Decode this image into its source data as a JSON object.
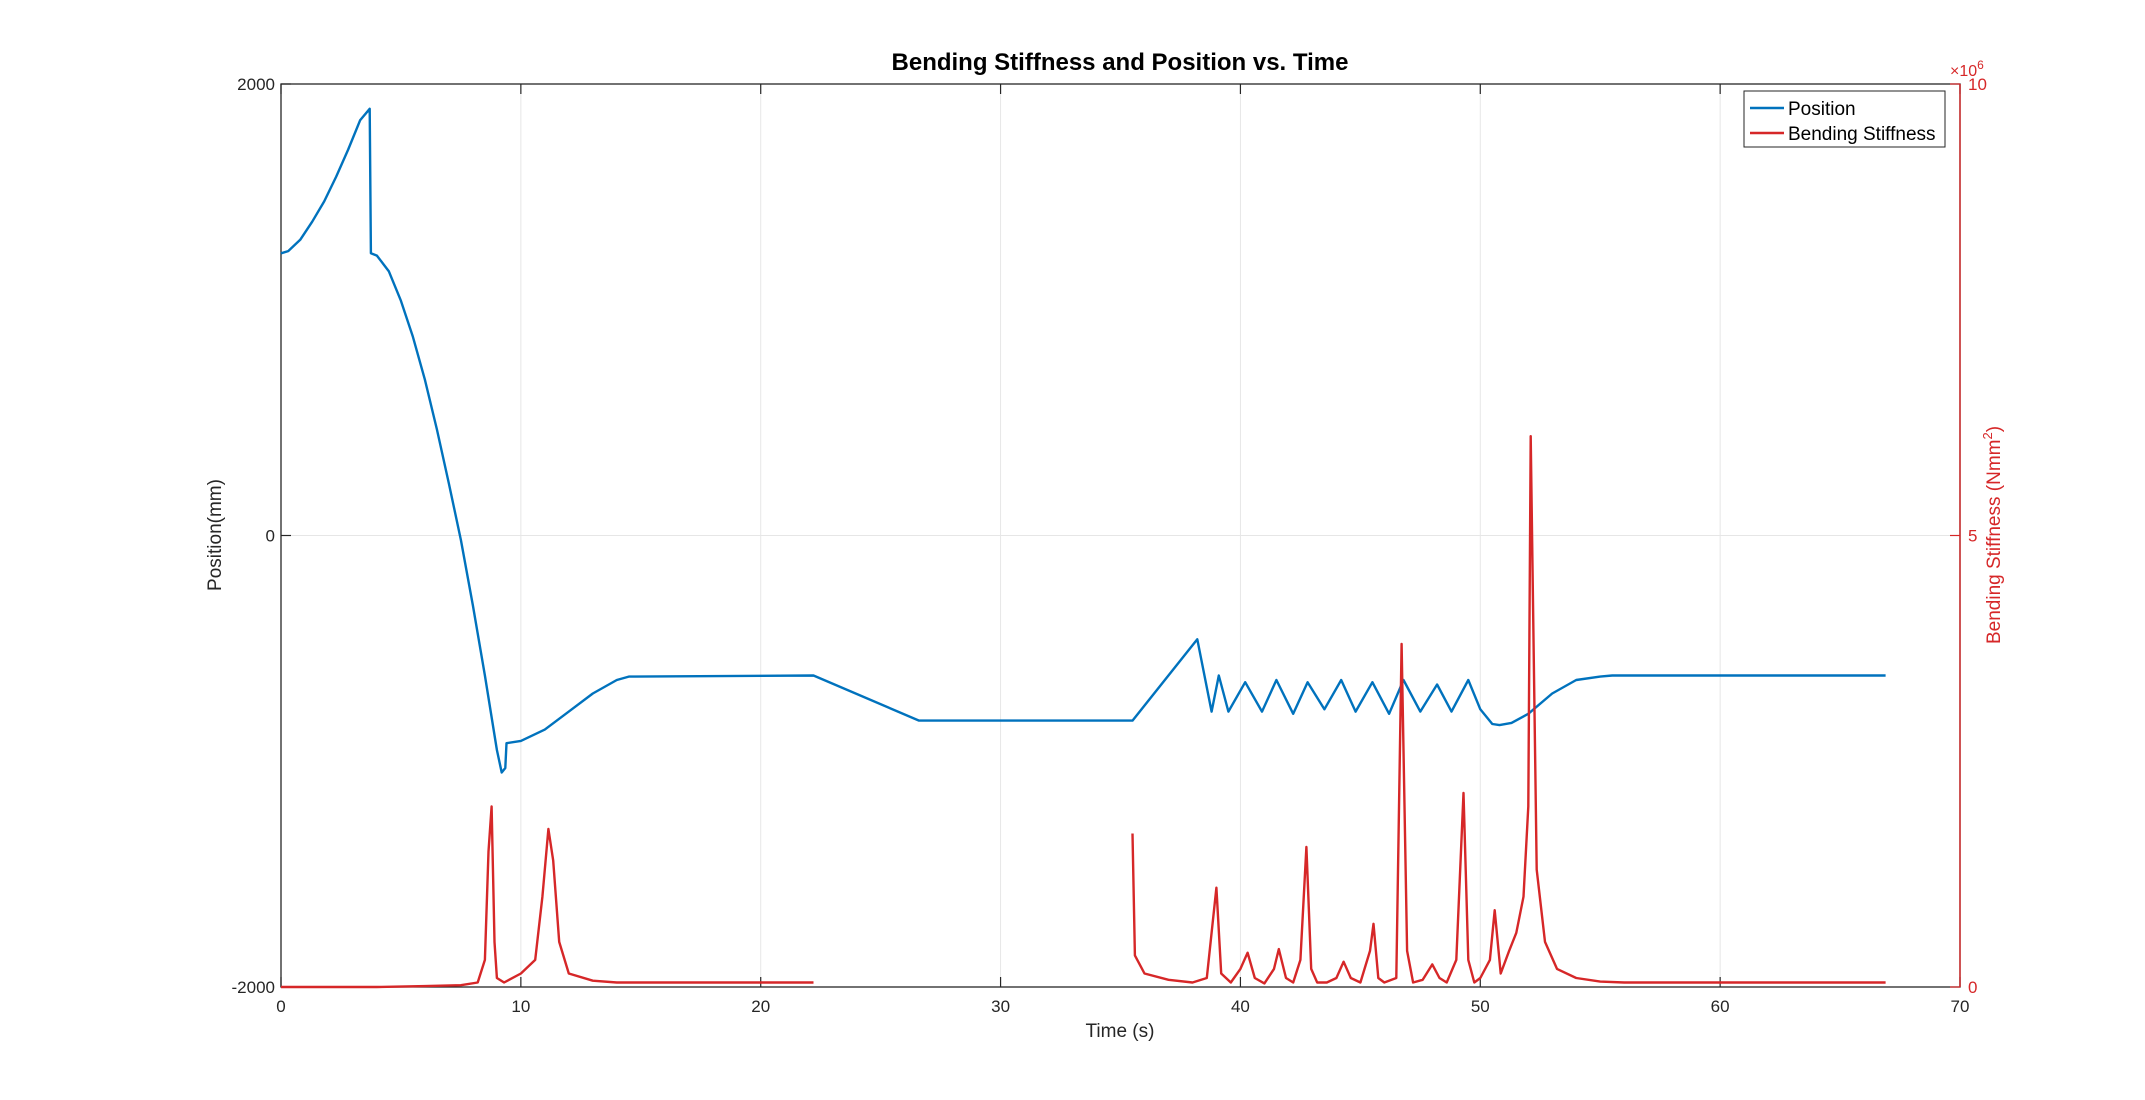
{
  "chart_data": {
    "type": "line",
    "title": "Bending Stiffness and Position vs. Time",
    "xlabel": "Time (s)",
    "ylabel_left": "Position(mm)",
    "ylabel_right": "Bending Stiffness (Nmm",
    "ylabel_right_sup": "2",
    "ylabel_right_close": ")",
    "right_exponent_base": "×10",
    "right_exponent_power": "6",
    "xlim": [
      0,
      70
    ],
    "ylim_left": [
      -2000,
      2000
    ],
    "ylim_right": [
      0,
      10
    ],
    "xticks": [
      0,
      10,
      20,
      30,
      40,
      50,
      60,
      70
    ],
    "xtick_labels": [
      "0",
      "10",
      "20",
      "30",
      "40",
      "50",
      "60",
      "70"
    ],
    "yticks_left": [
      -2000,
      0,
      2000
    ],
    "ytick_labels_left": [
      "-2000",
      "0",
      "2000"
    ],
    "yticks_right": [
      0,
      5,
      10
    ],
    "ytick_labels_right": [
      "0",
      "5",
      "10"
    ],
    "grid": true,
    "legend_position": "top-right",
    "colors": {
      "position": "#0072BD",
      "stiffness": "#D62728",
      "right_axis": "#D62728",
      "grid": "#e6e6e6",
      "axis": "#262626"
    },
    "series": [
      {
        "name": "Position",
        "axis": "left",
        "x": [
          0,
          0.3,
          0.8,
          1.3,
          1.8,
          2.3,
          2.8,
          3.3,
          3.7,
          3.75,
          4.0,
          4.5,
          5.0,
          5.5,
          6.0,
          6.5,
          7.0,
          7.5,
          8.0,
          8.5,
          9.0,
          9.2,
          9.35,
          9.4,
          10.0,
          11.0,
          12.0,
          13.0,
          14.0,
          14.5,
          22.2,
          26.6,
          35.5,
          38.2,
          38.8,
          39.1,
          39.5,
          40.2,
          40.9,
          41.5,
          42.2,
          42.8,
          43.5,
          44.2,
          44.8,
          45.5,
          46.2,
          46.8,
          47.5,
          48.2,
          48.8,
          49.5,
          50.0,
          50.5,
          50.8,
          51.3,
          52.0,
          53.0,
          54.0,
          55.0,
          55.5,
          60.0,
          66.9
        ],
        "y": [
          1250,
          1260,
          1310,
          1390,
          1480,
          1590,
          1710,
          1840,
          1890,
          1250,
          1240,
          1170,
          1040,
          880,
          690,
          470,
          230,
          -20,
          -310,
          -620,
          -950,
          -1050,
          -1030,
          -920,
          -910,
          -860,
          -780,
          -700,
          -640,
          -625,
          -620,
          -820,
          -820,
          -460,
          -780,
          -620,
          -780,
          -650,
          -780,
          -640,
          -790,
          -650,
          -770,
          -640,
          -780,
          -650,
          -790,
          -640,
          -780,
          -660,
          -780,
          -640,
          -770,
          -835,
          -840,
          -830,
          -790,
          -700,
          -640,
          -625,
          -620,
          -620,
          -620
        ]
      },
      {
        "name": "Bending Stiffness",
        "axis": "right",
        "x": [
          0,
          2,
          4,
          6,
          7.5,
          8.2,
          8.5,
          8.65,
          8.78,
          8.9,
          9.0,
          9.3,
          10.0,
          10.6,
          10.9,
          11.15,
          11.35,
          11.6,
          12.0,
          13.0,
          14.0,
          16.0,
          20.0,
          22.2,
          null,
          35.5,
          35.6,
          36.0,
          37.0,
          38.0,
          38.6,
          38.8,
          39.0,
          39.2,
          39.6,
          40.0,
          40.3,
          40.6,
          41.0,
          41.4,
          41.6,
          41.9,
          42.2,
          42.5,
          42.75,
          42.95,
          43.2,
          43.6,
          44.0,
          44.3,
          44.6,
          45.0,
          45.4,
          45.55,
          45.75,
          46.0,
          46.5,
          46.72,
          46.95,
          47.2,
          47.6,
          48.0,
          48.3,
          48.6,
          49.0,
          49.3,
          49.5,
          49.75,
          50.0,
          50.4,
          50.6,
          50.85,
          51.2,
          51.5,
          51.8,
          52.0,
          52.1,
          52.35,
          52.7,
          53.2,
          54.0,
          55.0,
          56.0,
          60.0,
          66.9
        ],
        "y": [
          0,
          0,
          0,
          0.01,
          0.02,
          0.05,
          0.3,
          1.5,
          2.0,
          0.5,
          0.1,
          0.05,
          0.15,
          0.3,
          1.0,
          1.75,
          1.4,
          0.5,
          0.15,
          0.07,
          0.05,
          0.05,
          0.05,
          0.05,
          null,
          1.7,
          0.35,
          0.15,
          0.08,
          0.05,
          0.1,
          0.6,
          1.1,
          0.15,
          0.05,
          0.2,
          0.38,
          0.1,
          0.04,
          0.2,
          0.42,
          0.1,
          0.05,
          0.3,
          1.55,
          0.2,
          0.05,
          0.05,
          0.1,
          0.28,
          0.1,
          0.05,
          0.4,
          0.7,
          0.1,
          0.05,
          0.1,
          3.8,
          0.4,
          0.05,
          0.08,
          0.25,
          0.1,
          0.05,
          0.3,
          2.15,
          0.3,
          0.05,
          0.1,
          0.3,
          0.85,
          0.15,
          0.4,
          0.6,
          1.0,
          2.0,
          6.1,
          1.3,
          0.5,
          0.2,
          0.1,
          0.06,
          0.05,
          0.05,
          0.05
        ]
      }
    ]
  }
}
